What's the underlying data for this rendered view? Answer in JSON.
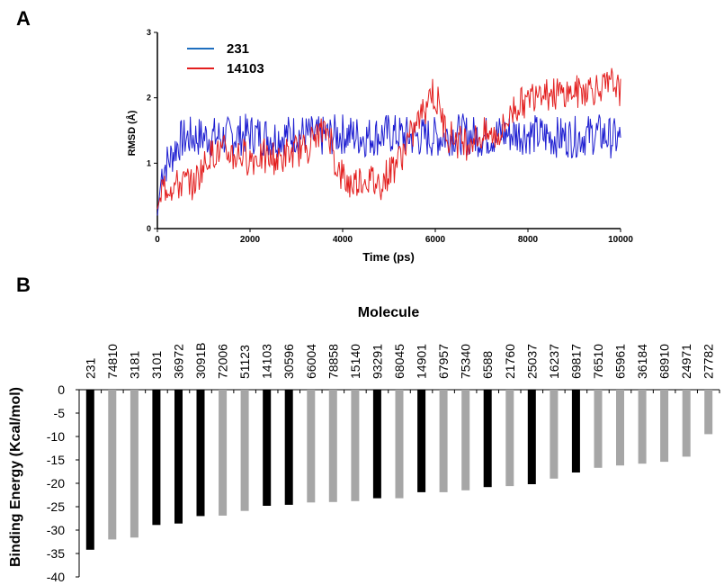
{
  "panels": {
    "a_label": "A",
    "b_label": "B"
  },
  "colors": {
    "series_231": "#1f1fd1",
    "series_14103": "#e31f1f",
    "legend_231": "#1f6fbf",
    "bar_black": "#000000",
    "bar_gray": "#a6a6a6"
  },
  "chart_data": [
    {
      "type": "line",
      "xlabel": "Time (ps)",
      "ylabel": "RMSD (Å)",
      "xlim": [
        0,
        10000
      ],
      "ylim": [
        0,
        3
      ],
      "xticks": [
        0,
        2000,
        4000,
        6000,
        8000,
        10000
      ],
      "yticks": [
        0,
        1,
        2,
        3
      ],
      "grid": false,
      "legend_position": "top-left",
      "series": [
        {
          "name": "231",
          "x": [
            0,
            100,
            200,
            300,
            400,
            500,
            700,
            1000,
            1500,
            2000,
            2500,
            3000,
            3500,
            4000,
            4500,
            5000,
            5500,
            6000,
            6500,
            7000,
            7500,
            8000,
            8500,
            9000,
            9500,
            10000
          ],
          "y": [
            0.2,
            0.9,
            1.0,
            1.1,
            1.25,
            1.35,
            1.4,
            1.4,
            1.4,
            1.45,
            1.4,
            1.45,
            1.4,
            1.45,
            1.4,
            1.45,
            1.4,
            1.4,
            1.45,
            1.4,
            1.45,
            1.45,
            1.4,
            1.4,
            1.45,
            1.35
          ]
        },
        {
          "name": "14103",
          "x": [
            0,
            100,
            300,
            500,
            800,
            1000,
            1200,
            1500,
            2000,
            2500,
            3000,
            3500,
            3700,
            3900,
            4100,
            4400,
            4800,
            5000,
            5300,
            5500,
            5700,
            5900,
            6100,
            6300,
            6600,
            7000,
            7400,
            7700,
            8000,
            8200,
            8400,
            8700,
            9000,
            9300,
            9600,
            10000
          ],
          "y": [
            0.3,
            0.6,
            0.65,
            0.7,
            0.7,
            0.95,
            1.2,
            1.15,
            1.1,
            1.05,
            1.15,
            1.45,
            1.5,
            0.85,
            0.7,
            0.75,
            0.7,
            0.85,
            1.2,
            1.45,
            1.75,
            2.1,
            1.8,
            1.4,
            1.35,
            1.4,
            1.45,
            1.85,
            1.95,
            2.2,
            2.1,
            2.05,
            2.1,
            2.15,
            2.15,
            2.2
          ]
        }
      ]
    },
    {
      "type": "bar",
      "title": "Molecule",
      "ylabel": "Binding Energy (Kcal/mol)",
      "ylim": [
        -40,
        0
      ],
      "yticks": [
        0,
        -5,
        -10,
        -15,
        -20,
        -25,
        -30,
        -35,
        -40
      ],
      "categories": [
        "231",
        "74810",
        "3181",
        "3101",
        "36972",
        "3091B",
        "72006",
        "51123",
        "14103",
        "30596",
        "66004",
        "78858",
        "15140",
        "93291",
        "68045",
        "14901",
        "67957",
        "75340",
        "6588",
        "21760",
        "25037",
        "16237",
        "69817",
        "76510",
        "65961",
        "36184",
        "68910",
        "24971",
        "27782"
      ],
      "values": [
        -34.2,
        -32.0,
        -31.6,
        -28.9,
        -28.6,
        -27.0,
        -26.9,
        -25.9,
        -24.8,
        -24.6,
        -24.1,
        -24.0,
        -23.8,
        -23.2,
        -23.2,
        -21.9,
        -21.9,
        -21.5,
        -20.8,
        -20.6,
        -20.2,
        -19.0,
        -17.7,
        -16.7,
        -16.2,
        -15.8,
        -15.4,
        -14.3,
        -9.5
      ],
      "highlight": [
        "231",
        "3101",
        "36972",
        "3091B",
        "14103",
        "30596",
        "93291",
        "14901",
        "6588",
        "25037",
        "69817"
      ]
    }
  ]
}
